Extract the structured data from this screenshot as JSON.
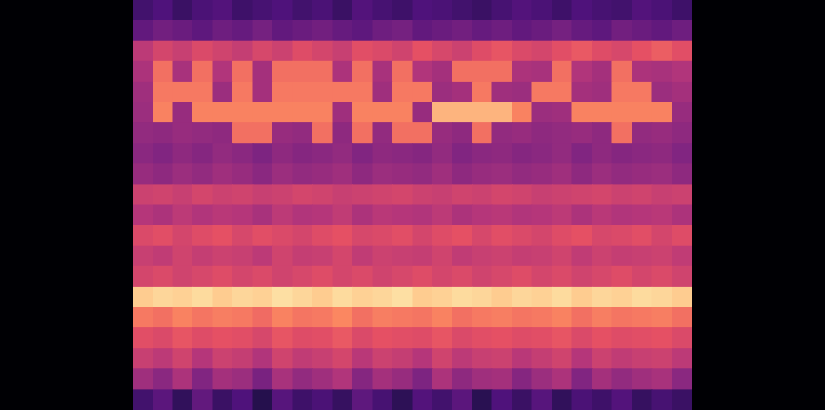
{
  "chart_data": {
    "type": "heatmap",
    "tick_labels": false,
    "xlim": [
      0,
      28
    ],
    "ylim": [
      0,
      20
    ],
    "color_range": [
      0,
      100
    ],
    "cells": [
      [
        22,
        25,
        20,
        24,
        26,
        21,
        23,
        25,
        22,
        24,
        20,
        26,
        23,
        21,
        25,
        24,
        22,
        20,
        23,
        26,
        24,
        21,
        25,
        23,
        22,
        26,
        24,
        21
      ],
      [
        30,
        34,
        32,
        29,
        33,
        31,
        35,
        30,
        32,
        34,
        31,
        29,
        33,
        35,
        30,
        32,
        34,
        31,
        33,
        30,
        32,
        35,
        31,
        29,
        34,
        32,
        30,
        33
      ],
      [
        52,
        58,
        55,
        60,
        57,
        54,
        59,
        56,
        61,
        58,
        55,
        62,
        60,
        57,
        63,
        59,
        56,
        61,
        64,
        60,
        58,
        62,
        65,
        61,
        59,
        63,
        66,
        62
      ],
      [
        48,
        70,
        47,
        70,
        49,
        70,
        46,
        70,
        70,
        70,
        48,
        70,
        47,
        70,
        49,
        46,
        70,
        70,
        70,
        48,
        47,
        70,
        49,
        46,
        70,
        48,
        47,
        49
      ],
      [
        45,
        72,
        72,
        72,
        44,
        72,
        46,
        72,
        72,
        72,
        72,
        72,
        45,
        72,
        72,
        44,
        46,
        72,
        45,
        44,
        72,
        72,
        46,
        45,
        72,
        72,
        44,
        46
      ],
      [
        44,
        74,
        43,
        74,
        74,
        74,
        74,
        74,
        74,
        74,
        45,
        74,
        74,
        74,
        43,
        85,
        85,
        85,
        85,
        74,
        44,
        45,
        74,
        74,
        74,
        74,
        74,
        43
      ],
      [
        42,
        41,
        43,
        42,
        41,
        70,
        70,
        43,
        42,
        70,
        41,
        70,
        42,
        70,
        70,
        43,
        41,
        70,
        42,
        43,
        41,
        42,
        43,
        41,
        70,
        42,
        43,
        41
      ],
      [
        40,
        38,
        41,
        39,
        42,
        40,
        37,
        41,
        39,
        40,
        42,
        38,
        41,
        40,
        39,
        42,
        38,
        40,
        41,
        39,
        40,
        42,
        38,
        41,
        39,
        40,
        41,
        38
      ],
      [
        43,
        41,
        44,
        42,
        45,
        43,
        40,
        44,
        42,
        43,
        45,
        41,
        44,
        43,
        42,
        45,
        41,
        43,
        44,
        42,
        43,
        45,
        41,
        44,
        42,
        43,
        44,
        41
      ],
      [
        56,
        57,
        55,
        58,
        56,
        57,
        55,
        56,
        58,
        57,
        55,
        56,
        57,
        58,
        56,
        55,
        57,
        56,
        58,
        57,
        55,
        56,
        57,
        58,
        56,
        57,
        55,
        56
      ],
      [
        50,
        48,
        52,
        49,
        51,
        50,
        47,
        52,
        49,
        50,
        53,
        48,
        51,
        50,
        49,
        52,
        48,
        50,
        51,
        49,
        50,
        52,
        48,
        51,
        49,
        50,
        51,
        48
      ],
      [
        60,
        62,
        58,
        61,
        63,
        59,
        62,
        60,
        58,
        61,
        63,
        59,
        60,
        62,
        58,
        61,
        63,
        59,
        62,
        60,
        58,
        61,
        63,
        59,
        60,
        62,
        58,
        61
      ],
      [
        55,
        53,
        57,
        54,
        56,
        55,
        52,
        57,
        54,
        55,
        58,
        53,
        56,
        55,
        54,
        57,
        53,
        55,
        56,
        54,
        55,
        57,
        53,
        56,
        54,
        55,
        56,
        53
      ],
      [
        58,
        60,
        57,
        59,
        61,
        58,
        60,
        57,
        59,
        61,
        58,
        60,
        57,
        59,
        61,
        58,
        60,
        57,
        59,
        61,
        58,
        60,
        57,
        59,
        61,
        58,
        60,
        57
      ],
      [
        90,
        92,
        91,
        93,
        90,
        92,
        91,
        94,
        92,
        90,
        93,
        91,
        92,
        94,
        90,
        91,
        93,
        92,
        90,
        92,
        91,
        93,
        90,
        92,
        91,
        93,
        92,
        90
      ],
      [
        72,
        70,
        74,
        71,
        73,
        72,
        69,
        74,
        71,
        72,
        75,
        70,
        73,
        72,
        71,
        74,
        70,
        72,
        73,
        71,
        72,
        74,
        70,
        73,
        71,
        72,
        73,
        70
      ],
      [
        62,
        60,
        64,
        61,
        63,
        62,
        59,
        64,
        61,
        62,
        65,
        60,
        63,
        62,
        61,
        64,
        60,
        62,
        63,
        61,
        62,
        64,
        60,
        63,
        61,
        62,
        63,
        60
      ],
      [
        55,
        52,
        57,
        50,
        56,
        54,
        49,
        57,
        53,
        55,
        58,
        51,
        56,
        54,
        50,
        57,
        52,
        55,
        56,
        51,
        54,
        57,
        50,
        56,
        53,
        55,
        56,
        52
      ],
      [
        45,
        40,
        48,
        38,
        46,
        44,
        36,
        47,
        42,
        45,
        49,
        39,
        46,
        43,
        37,
        48,
        41,
        45,
        46,
        39,
        44,
        48,
        38,
        46,
        42,
        45,
        47,
        40
      ],
      [
        22,
        28,
        18,
        30,
        20,
        25,
        15,
        27,
        21,
        24,
        19,
        29,
        23,
        17,
        26,
        22,
        28,
        16,
        25,
        20,
        27,
        18,
        24,
        21,
        26,
        19,
        23,
        20
      ]
    ]
  }
}
